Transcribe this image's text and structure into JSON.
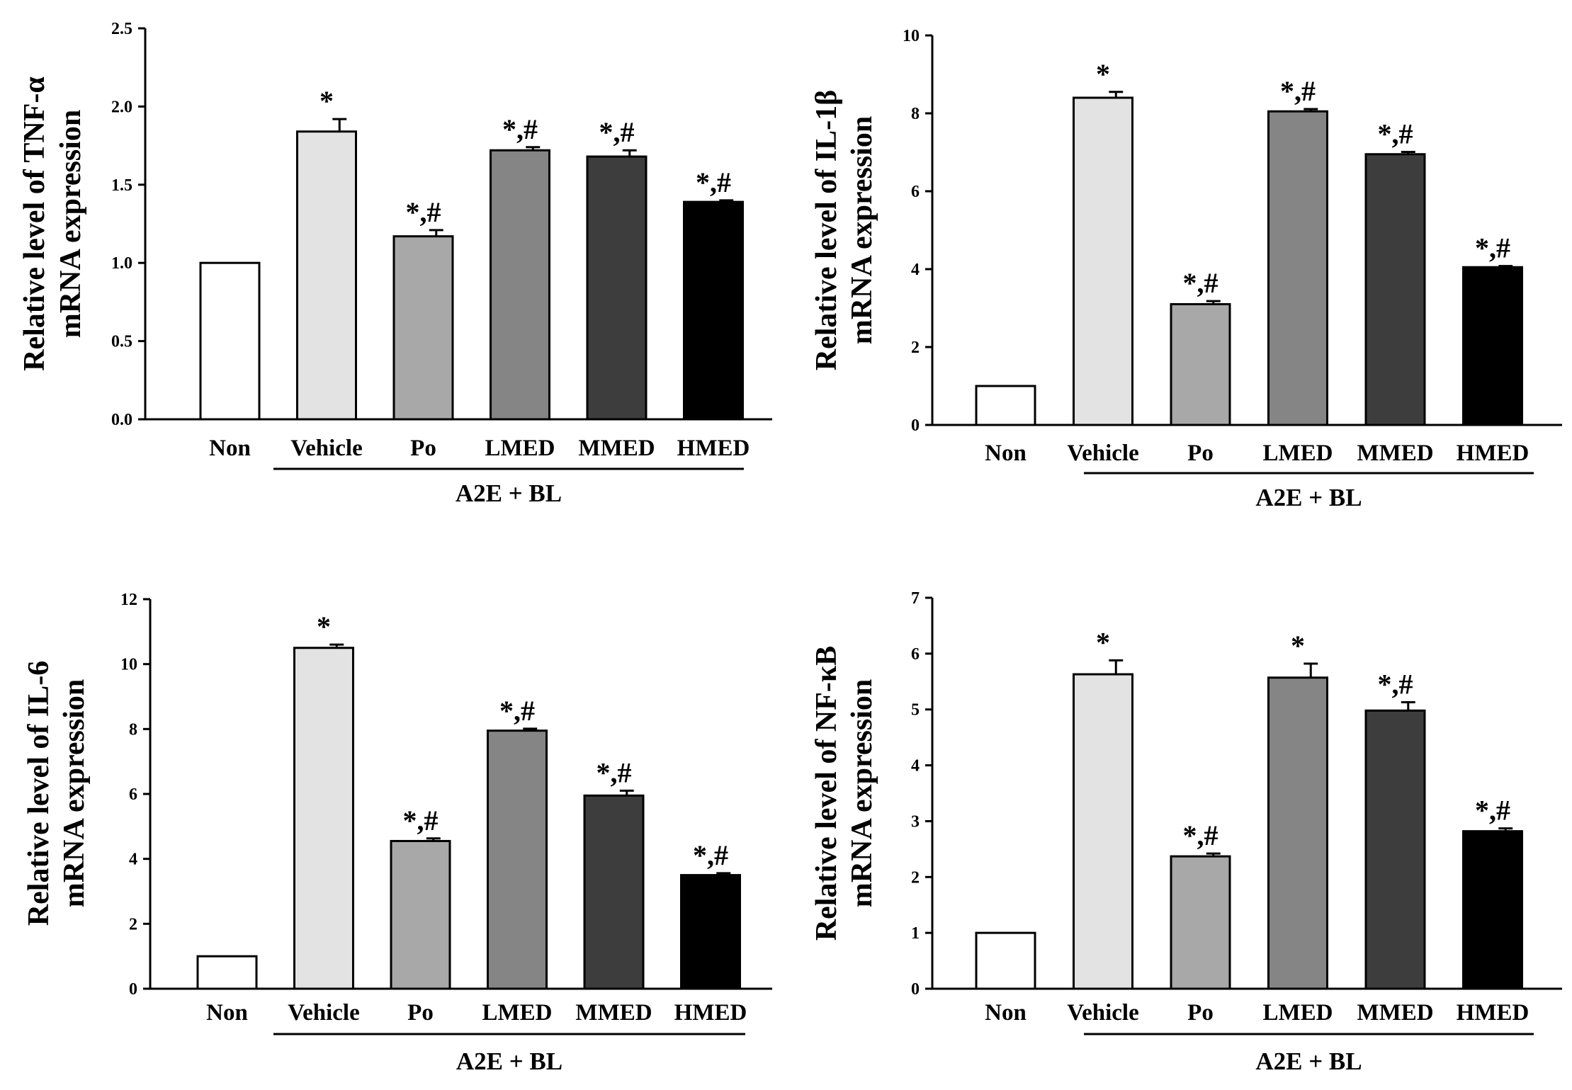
{
  "chart_data": [
    {
      "type": "bar",
      "categories": [
        "Non",
        "Vehicle",
        "Po",
        "LMED",
        "MMED",
        "HMED"
      ],
      "values": [
        1.0,
        1.84,
        1.17,
        1.72,
        1.68,
        1.39
      ],
      "errors": [
        0,
        0.08,
        0.04,
        0.02,
        0.04,
        0.01
      ],
      "significance": [
        "",
        "*",
        "*,#",
        "*,#",
        "*,#",
        "*,#"
      ],
      "colors": [
        "#ffffff",
        "#e3e3e3",
        "#a8a8a8",
        "#858585",
        "#3d3d3d",
        "#000000"
      ],
      "ylabel_line1": "Relative level of TNF-α",
      "ylabel_line2": "mRNA expression",
      "ylim": [
        0,
        2.5
      ],
      "yticks": [
        "0.0",
        "0.5",
        "1.0",
        "1.5",
        "2.0",
        "2.5"
      ],
      "tick_step": 0.5,
      "group_label": "A2E + BL"
    },
    {
      "type": "bar",
      "categories": [
        "Non",
        "Vehicle",
        "Po",
        "LMED",
        "MMED",
        "HMED"
      ],
      "values": [
        1.0,
        8.4,
        3.1,
        8.05,
        6.95,
        4.05
      ],
      "errors": [
        0,
        0.15,
        0.08,
        0.06,
        0.06,
        0.03
      ],
      "significance": [
        "",
        "*",
        "*,#",
        "*,#",
        "*,#",
        "*,#"
      ],
      "colors": [
        "#ffffff",
        "#e3e3e3",
        "#a8a8a8",
        "#858585",
        "#3d3d3d",
        "#000000"
      ],
      "ylabel_line1": "Relative level of IL-1β",
      "ylabel_line2": "mRNA expression",
      "ylim": [
        0,
        10
      ],
      "yticks": [
        "0",
        "2",
        "4",
        "6",
        "8",
        "10"
      ],
      "tick_step": 2,
      "group_label": "A2E + BL"
    },
    {
      "type": "bar",
      "categories": [
        "Non",
        "Vehicle",
        "Po",
        "LMED",
        "MMED",
        "HMED"
      ],
      "values": [
        1.0,
        10.5,
        4.55,
        7.95,
        5.95,
        3.5
      ],
      "errors": [
        0,
        0.1,
        0.08,
        0.06,
        0.15,
        0.06
      ],
      "significance": [
        "",
        "*",
        "*,#",
        "*,#",
        "*,#",
        "*,#"
      ],
      "colors": [
        "#ffffff",
        "#e3e3e3",
        "#a8a8a8",
        "#858585",
        "#3d3d3d",
        "#000000"
      ],
      "ylabel_line1": "Relative level of IL-6",
      "ylabel_line2": "mRNA expression",
      "ylim": [
        0,
        12
      ],
      "yticks": [
        "0",
        "2",
        "4",
        "6",
        "8",
        "10",
        "12"
      ],
      "tick_step": 2,
      "group_label": "A2E + BL"
    },
    {
      "type": "bar",
      "categories": [
        "Non",
        "Vehicle",
        "Po",
        "LMED",
        "MMED",
        "HMED"
      ],
      "values": [
        1.0,
        5.63,
        2.37,
        5.57,
        4.98,
        2.82
      ],
      "errors": [
        0,
        0.25,
        0.05,
        0.25,
        0.15,
        0.05
      ],
      "significance": [
        "",
        "*",
        "*,#",
        "*",
        "*,#",
        "*,#"
      ],
      "colors": [
        "#ffffff",
        "#e3e3e3",
        "#a8a8a8",
        "#858585",
        "#3d3d3d",
        "#000000"
      ],
      "ylabel_line1": "Relative level of NF-κB",
      "ylabel_line2": "mRNA expression",
      "ylim": [
        0,
        7
      ],
      "yticks": [
        "0",
        "1",
        "2",
        "3",
        "4",
        "5",
        "6",
        "7"
      ],
      "tick_step": 1,
      "group_label": "A2E + BL"
    }
  ]
}
